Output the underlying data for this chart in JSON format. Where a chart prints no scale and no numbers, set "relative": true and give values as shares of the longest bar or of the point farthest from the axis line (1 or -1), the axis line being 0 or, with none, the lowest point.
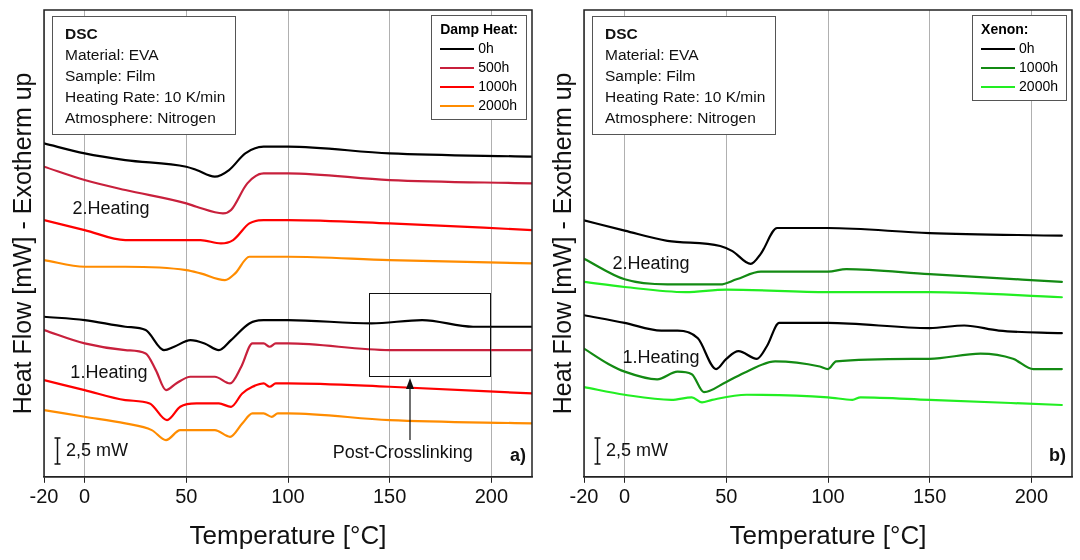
{
  "chart_data": [
    {
      "type": "line",
      "xlabel": "Temperature [°C]",
      "ylabel": "Heat Flow [mW] - Exotherm up",
      "relative": true,
      "xlim": [
        -20,
        220
      ],
      "xticks": [
        -20,
        0,
        50,
        100,
        150,
        200
      ],
      "grid": "x",
      "marker": "none",
      "legend": "top right",
      "legend_title": "Damp Heat:",
      "annotations": [
        "DSC",
        "Material: EVA",
        "Sample: Film",
        "Heating Rate: 10 K/min",
        "Atmosphere: Nitrogen",
        "2.Heating",
        "1.Heating",
        "2,5 mW",
        "Post-Crosslinking",
        "a)"
      ],
      "series": [
        {
          "name": "0h",
          "color": "#000000",
          "x": [
            -20,
            0,
            20,
            50,
            55,
            64,
            71,
            79,
            88,
            100,
            150,
            220
          ],
          "values": [
            1.0,
            0.97,
            0.95,
            0.93,
            0.92,
            0.9,
            0.92,
            0.97,
            0.99,
            0.99,
            0.97,
            0.96
          ]
        },
        {
          "name": "500h",
          "color": "#c8203c",
          "x": [
            -20,
            0,
            20,
            50,
            55,
            68,
            72,
            80,
            88,
            100,
            150,
            220
          ],
          "values": [
            0.93,
            0.89,
            0.86,
            0.82,
            0.81,
            0.79,
            0.8,
            0.88,
            0.91,
            0.91,
            0.89,
            0.88
          ]
        },
        {
          "name": "1000h",
          "color": "#ff0000",
          "x": [
            -20,
            0,
            20,
            50,
            57,
            67,
            73,
            81,
            88,
            100,
            150,
            220
          ],
          "values": [
            0.77,
            0.74,
            0.71,
            0.71,
            0.71,
            0.7,
            0.71,
            0.76,
            0.77,
            0.77,
            0.76,
            0.74
          ]
        },
        {
          "name": "2000h",
          "color": "#ff8c00",
          "x": [
            -20,
            0,
            20,
            50,
            57,
            69,
            74,
            81,
            88,
            100,
            150,
            220
          ],
          "values": [
            0.65,
            0.63,
            0.63,
            0.62,
            0.61,
            0.59,
            0.61,
            0.66,
            0.66,
            0.66,
            0.65,
            0.64
          ]
        },
        {
          "color": "#000000",
          "x": [
            -20,
            0,
            20,
            30,
            39,
            44,
            52,
            59,
            66,
            72,
            81,
            88,
            100,
            141,
            166,
            191,
            220
          ],
          "values": [
            0.48,
            0.47,
            0.45,
            0.44,
            0.38,
            0.39,
            0.41,
            0.4,
            0.38,
            0.41,
            0.46,
            0.47,
            0.47,
            0.46,
            0.47,
            0.45,
            0.45
          ]
        },
        {
          "color": "#c8203c",
          "x": [
            -20,
            0,
            20,
            30,
            35,
            40,
            45,
            52,
            64,
            71.5,
            77,
            82.5,
            88,
            91,
            94,
            100,
            150,
            220
          ],
          "values": [
            0.44,
            0.4,
            0.38,
            0.37,
            0.32,
            0.26,
            0.28,
            0.3,
            0.3,
            0.28,
            0.33,
            0.4,
            0.4,
            0.39,
            0.4,
            0.4,
            0.38,
            0.38
          ]
        },
        {
          "color": "#ff0000",
          "x": [
            -20,
            0,
            20,
            32,
            40.5,
            47,
            55,
            66,
            72,
            77.5,
            82.5,
            88,
            91,
            94,
            100,
            150,
            220
          ],
          "values": [
            0.29,
            0.26,
            0.23,
            0.22,
            0.17,
            0.21,
            0.22,
            0.22,
            0.21,
            0.25,
            0.27,
            0.28,
            0.27,
            0.28,
            0.28,
            0.27,
            0.25
          ]
        },
        {
          "color": "#ff8c00",
          "x": [
            -20,
            0,
            20,
            33,
            40,
            47,
            55,
            64,
            71.5,
            77.5,
            82.5,
            88,
            92,
            95,
            100,
            150,
            220
          ],
          "values": [
            0.2,
            0.18,
            0.16,
            0.14,
            0.11,
            0.14,
            0.14,
            0.14,
            0.12,
            0.16,
            0.19,
            0.19,
            0.18,
            0.19,
            0.19,
            0.17,
            0.16
          ]
        }
      ]
    },
    {
      "type": "line",
      "xlabel": "Temperature [°C]",
      "ylabel": "Heat Flow [mW] - Exotherm up",
      "relative": true,
      "xlim": [
        -20,
        220
      ],
      "xticks": [
        -20,
        0,
        50,
        100,
        150,
        200
      ],
      "grid": "x",
      "marker": "none",
      "legend": "top right",
      "legend_title": "Xenon:",
      "annotations": [
        "DSC",
        "Material: EVA",
        "Sample: Film",
        "Heating Rate: 10 K/min",
        "Atmosphere: Nitrogen",
        "2.Heating",
        "1.Heating",
        "2,5 mW",
        "b)"
      ],
      "series": [
        {
          "name": "0h",
          "color": "#000000",
          "x": [
            -20,
            0,
            21,
            47,
            53,
            62,
            67,
            75,
            84,
            100,
            150,
            215
          ],
          "values": [
            1.0,
            0.96,
            0.92,
            0.9,
            0.88,
            0.83,
            0.87,
            0.97,
            0.97,
            0.97,
            0.95,
            0.94
          ]
        },
        {
          "name": "1000h",
          "color": "#138a13",
          "x": [
            -20,
            0,
            21,
            47,
            55,
            67,
            100,
            109,
            150,
            215
          ],
          "values": [
            0.85,
            0.77,
            0.75,
            0.75,
            0.77,
            0.8,
            0.8,
            0.81,
            0.79,
            0.76
          ]
        },
        {
          "name": "2000h",
          "color": "#22ee22",
          "x": [
            -20,
            0,
            30,
            50,
            100,
            150,
            215
          ],
          "values": [
            0.76,
            0.74,
            0.72,
            0.73,
            0.72,
            0.72,
            0.7
          ]
        },
        {
          "color": "#000000",
          "x": [
            -20,
            0,
            18,
            26,
            36,
            45,
            50,
            56,
            65,
            70,
            76,
            84,
            100,
            150,
            167,
            184,
            215
          ],
          "values": [
            0.63,
            0.6,
            0.57,
            0.57,
            0.54,
            0.42,
            0.46,
            0.49,
            0.46,
            0.51,
            0.6,
            0.6,
            0.6,
            0.58,
            0.59,
            0.57,
            0.56
          ]
        },
        {
          "color": "#138a13",
          "x": [
            -20,
            -8,
            0,
            16,
            26,
            33,
            39,
            50,
            60,
            74,
            96,
            100,
            104,
            150,
            175,
            191,
            201,
            215
          ],
          "values": [
            0.5,
            0.44,
            0.41,
            0.38,
            0.41,
            0.4,
            0.33,
            0.37,
            0.41,
            0.45,
            0.43,
            0.42,
            0.45,
            0.46,
            0.48,
            0.46,
            0.42,
            0.42
          ]
        },
        {
          "color": "#22ee22",
          "x": [
            -20,
            0,
            23,
            33,
            38,
            43,
            60,
            100,
            112,
            116,
            150,
            215
          ],
          "values": [
            0.35,
            0.32,
            0.3,
            0.31,
            0.29,
            0.3,
            0.32,
            0.31,
            0.3,
            0.31,
            0.3,
            0.28
          ]
        }
      ]
    }
  ]
}
